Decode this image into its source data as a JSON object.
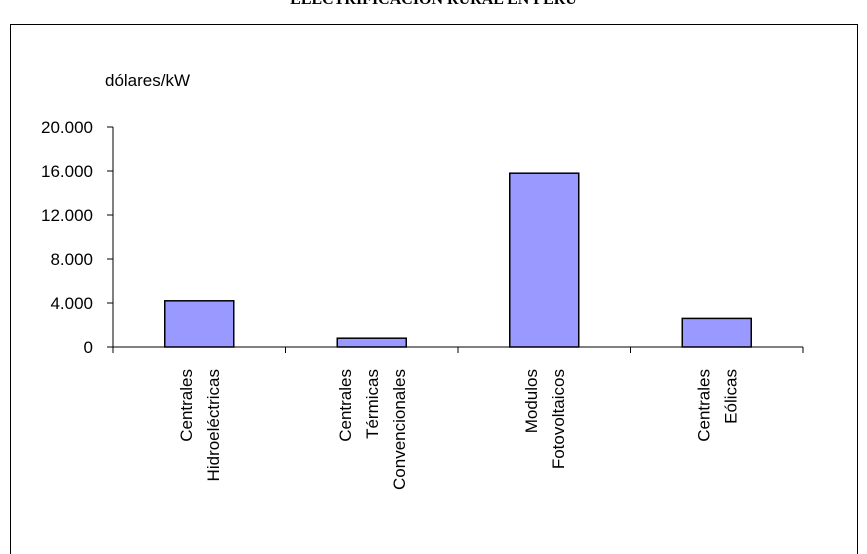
{
  "chart_data": {
    "type": "bar",
    "title": "ELECTRIFICACIÓN RURAL EN PERÚ",
    "ylabel": "dólares/kW",
    "xlabel": "",
    "categories": [
      [
        "Centrales",
        "Hidroeléctricas"
      ],
      [
        "Centrales",
        "Térmicas",
        "Convencionales"
      ],
      [
        "Modulos",
        "Fotovoltaicos"
      ],
      [
        "Centrales",
        "Eólicas"
      ]
    ],
    "values": [
      4200,
      800,
      15800,
      2600
    ],
    "ylim": [
      0,
      20000
    ],
    "yticks": [
      0,
      4000,
      8000,
      12000,
      16000,
      20000
    ],
    "ytick_labels": [
      "0",
      "4.000",
      "8.000",
      "12.000",
      "16.000",
      "20.000"
    ],
    "bar_color": "#9999ff",
    "grid": false,
    "legend": "none"
  }
}
